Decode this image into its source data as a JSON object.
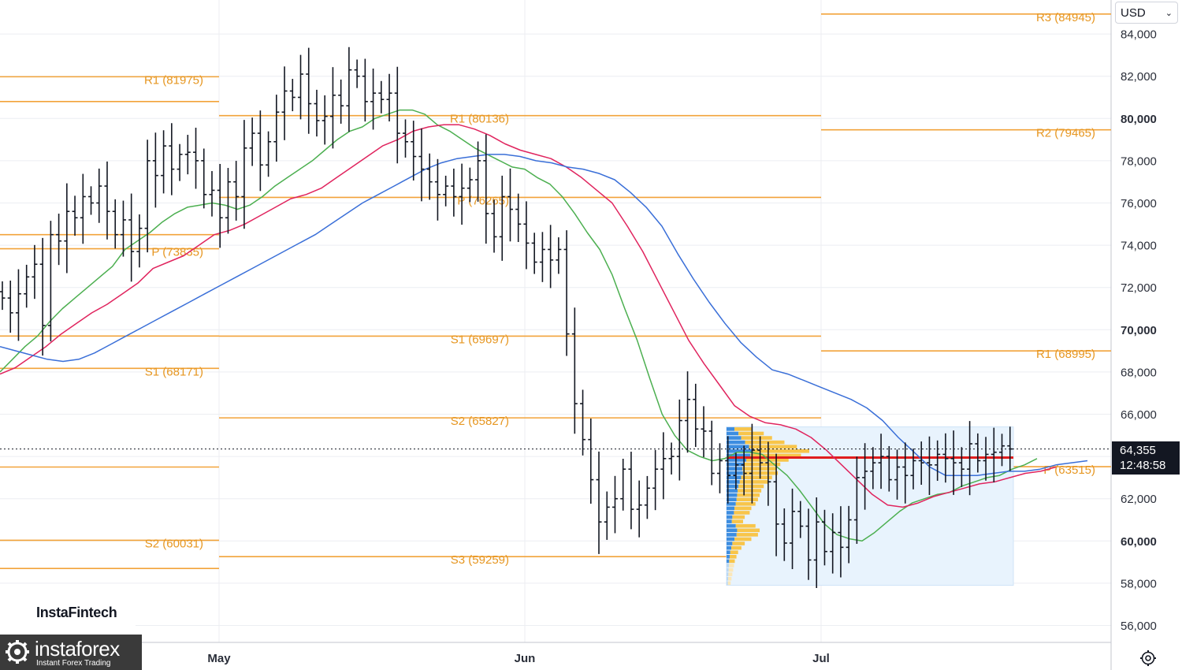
{
  "currency_selector": {
    "value": "USD"
  },
  "last_price": {
    "price": "64,355",
    "countdown": "12:48:58"
  },
  "watermark": {
    "text": "InstaFintech"
  },
  "brand": {
    "name": "instaforex",
    "tagline": "Instant Forex Trading"
  },
  "colors": {
    "pivot": "#f2a33a",
    "ma_fast": "#4caf50",
    "ma_mid": "#e0245e",
    "ma_slow": "#3a6fd8",
    "bar": "#131722",
    "hline": "#e01e1e",
    "profile_blue": "#3d8de0",
    "profile_yellow": "#f8c54a",
    "profile_box": "#e8f3fd"
  },
  "chart_data": {
    "type": "ohlc",
    "title": "",
    "xlabel": "",
    "ylabel": "",
    "y_axis_labels": [
      "84,000",
      "82,000",
      "80,000",
      "78,000",
      "76,000",
      "74,000",
      "72,000",
      "70,000",
      "68,000",
      "66,000",
      "62,000",
      "60,000",
      "58,000",
      "56,000"
    ],
    "y_axis_bold": [
      "80,000",
      "70,000",
      "60,000"
    ],
    "ylim": [
      55200,
      85800
    ],
    "x_axis_labels": [
      "May",
      "Jun",
      "Jul"
    ],
    "last_price_value": 64355,
    "pivot_periods": [
      {
        "name": "April",
        "levels": [
          {
            "label": "",
            "value": 85750
          },
          {
            "label": "R1 (81975)",
            "value": 81975
          },
          {
            "label": "",
            "value": 80800
          },
          {
            "label": "",
            "value": 74500
          },
          {
            "label": "P (73835)",
            "value": 73835
          },
          {
            "label": "",
            "value": 69700
          },
          {
            "label": "S1 (68171)",
            "value": 68171
          },
          {
            "label": "",
            "value": 63500
          },
          {
            "label": "S2 (60031)",
            "value": 60031
          },
          {
            "label": "",
            "value": 58700
          }
        ]
      },
      {
        "name": "May",
        "levels": [
          {
            "label": "R1 (80136)",
            "value": 80136
          },
          {
            "label": "P (76265)",
            "value": 76265
          },
          {
            "label": "S1 (69697)",
            "value": 69697
          },
          {
            "label": "S2 (65827)",
            "value": 65827
          },
          {
            "label": "S3 (59259)",
            "value": 59259
          }
        ]
      },
      {
        "name": "June",
        "levels": [
          {
            "label": "R3 (84945)",
            "value": 84945
          },
          {
            "label": "R2 (79465)",
            "value": 79465
          },
          {
            "label": "R1 (68995)",
            "value": 68995
          },
          {
            "label": "P (63515)",
            "value": 63515
          }
        ]
      }
    ],
    "horizontal_line": {
      "value": 63950
    },
    "series": [
      {
        "kind": "ohlc_close",
        "values": [
          71500,
          70800,
          71700,
          72500,
          73100,
          70200,
          74500,
          74200,
          75600,
          75300,
          76300,
          76000,
          76800,
          75600,
          74500,
          75200,
          73700,
          74800,
          78000,
          77300,
          78700,
          77600,
          78300,
          78400,
          78000,
          76400,
          76600,
          75300,
          77000,
          76300,
          78600,
          79300,
          77800,
          78900,
          80300,
          81300,
          81000,
          82100,
          80700,
          79900,
          80100,
          81100,
          80600,
          82300,
          82000,
          80800,
          81200,
          80900,
          81200,
          79300,
          78900,
          78200,
          77600,
          77000,
          76400,
          76800,
          76300,
          76700,
          77100,
          78000,
          75500,
          74400,
          76300,
          75700,
          75000,
          74100,
          73200,
          73800,
          73300,
          73800,
          69800,
          66500,
          64800,
          62900,
          60900,
          61600,
          62000,
          63400,
          61500,
          61700,
          62500,
          63400,
          63900,
          64000,
          65700,
          66700,
          65300,
          65200,
          63200,
          63800,
          63100,
          63600,
          63200,
          64300,
          63700,
          62800,
          60800,
          59900,
          61400,
          60700,
          59100,
          60900,
          59500,
          60400,
          59700,
          61000,
          63000,
          63300,
          63700,
          64000,
          62900,
          63500,
          63100,
          63800,
          63700,
          63600,
          64100,
          63900,
          63700,
          63400,
          64600,
          63800,
          64100,
          64200,
          64500,
          64355
        ]
      },
      {
        "name": "",
        "kind": "ma_fast",
        "values": [
          68000,
          68600,
          69200,
          69700,
          70400,
          71000,
          71500,
          72000,
          72500,
          73000,
          73800,
          74200,
          74600,
          75100,
          75500,
          75800,
          75900,
          76000,
          75900,
          75700,
          75900,
          76300,
          76800,
          77200,
          77600,
          78000,
          78500,
          79000,
          79400,
          79600,
          80000,
          80200,
          80400,
          80400,
          80200,
          79700,
          79400,
          79000,
          78600,
          78300,
          78000,
          77700,
          77600,
          77200,
          76900,
          76300,
          75500,
          74600,
          73800,
          72600,
          71000,
          69500,
          67700,
          66000,
          65000,
          64300,
          64000,
          63800,
          63900,
          64200,
          64200,
          64100,
          63600,
          63100,
          62400,
          61600,
          60800,
          60300,
          60100,
          60000,
          60400,
          60900,
          61400,
          61800,
          62000,
          62200,
          62300,
          62600,
          62800,
          63000,
          63100,
          63400,
          63600,
          63900
        ]
      },
      {
        "name": "",
        "kind": "ma_mid",
        "values": [
          67900,
          68200,
          68700,
          69200,
          69800,
          70300,
          70800,
          71200,
          71700,
          72200,
          72900,
          73200,
          73500,
          74000,
          74500,
          74700,
          75000,
          75400,
          75800,
          76200,
          76400,
          76700,
          77200,
          77700,
          78200,
          78700,
          79000,
          79400,
          79600,
          79700,
          79700,
          79500,
          79200,
          78800,
          78500,
          78300,
          78100,
          77700,
          77200,
          76600,
          76000,
          74900,
          73700,
          72300,
          70900,
          69500,
          68400,
          67400,
          66400,
          65900,
          65600,
          65500,
          65300,
          64900,
          64300,
          63600,
          62900,
          62200,
          61700,
          61600,
          61800,
          62100,
          62300,
          62500,
          62700,
          62800,
          63000,
          63200,
          63300,
          63500
        ]
      },
      {
        "name": "",
        "kind": "ma_slow",
        "values": [
          69200,
          69000,
          68800,
          68600,
          68500,
          68600,
          68900,
          69300,
          69700,
          70100,
          70500,
          70900,
          71300,
          71700,
          72100,
          72500,
          72900,
          73300,
          73700,
          74100,
          74500,
          75000,
          75500,
          76000,
          76400,
          76800,
          77200,
          77600,
          77900,
          78100,
          78200,
          78300,
          78300,
          78200,
          78000,
          77900,
          77700,
          77600,
          77400,
          77100,
          76500,
          75800,
          74900,
          73600,
          72400,
          71300,
          70300,
          69400,
          68700,
          68100,
          67900,
          67600,
          67300,
          67000,
          66700,
          66300,
          65700,
          64900,
          64200,
          63500,
          63100,
          63100,
          63100,
          63200,
          63300,
          63300,
          63400,
          63600,
          63700,
          63800
        ]
      }
    ],
    "volume_profile": {
      "price_range": [
        57900,
        65400
      ],
      "rows": 36
    }
  }
}
